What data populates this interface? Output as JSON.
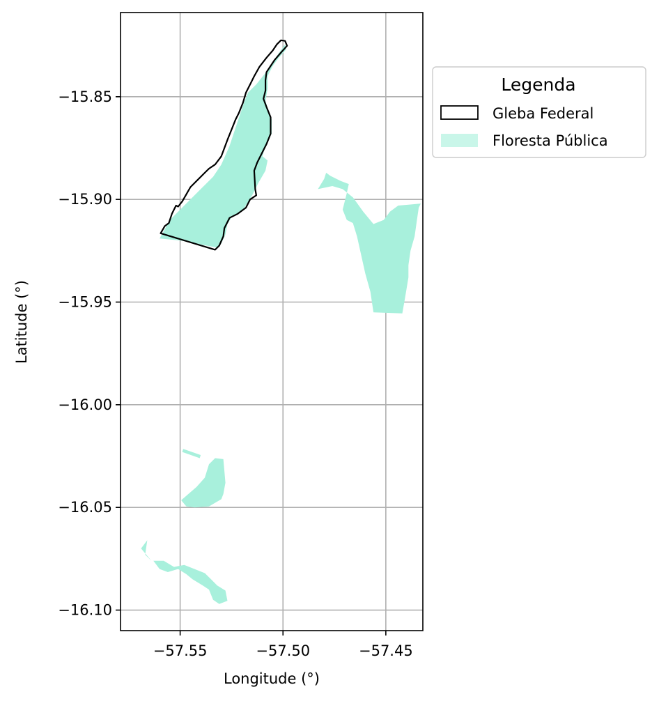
{
  "chart_data": {
    "type": "map",
    "xlabel": "Longitude (°)",
    "ylabel": "Latitude (°)",
    "xlim": [
      -57.579,
      -57.432
    ],
    "ylim": [
      -16.11,
      -15.809
    ],
    "xticks": [
      -57.55,
      -57.5,
      -57.45
    ],
    "yticks": [
      -15.85,
      -15.9,
      -15.95,
      -16.0,
      -16.05,
      -16.1
    ],
    "xtick_labels": [
      "−57.55",
      "−57.50",
      "−57.45"
    ],
    "ytick_labels": [
      "−15.85",
      "−15.90",
      "−15.95",
      "−16.00",
      "−16.05",
      "−16.10"
    ],
    "grid": true,
    "legend": {
      "title": "Legenda",
      "placement": "outside-right-top",
      "entries": [
        {
          "label": "Gleba Federal",
          "style": "outline",
          "edge_color": "#000000"
        },
        {
          "label": "Floresta Pública",
          "style": "fill",
          "fill_color": "#a8f0dc"
        }
      ]
    },
    "layers": {
      "gleba_federal": {
        "name": "Gleba Federal",
        "color": "#000000",
        "outline": [
          [
            -57.5595,
            -15.9165
          ],
          [
            -57.5575,
            -15.913
          ],
          [
            -57.5555,
            -15.9115
          ],
          [
            -57.554,
            -15.907
          ],
          [
            -57.552,
            -15.903
          ],
          [
            -57.551,
            -15.9035
          ],
          [
            -57.549,
            -15.901
          ],
          [
            -57.547,
            -15.8975
          ],
          [
            -57.545,
            -15.894
          ],
          [
            -57.541,
            -15.89
          ],
          [
            -57.538,
            -15.887
          ],
          [
            -57.536,
            -15.885
          ],
          [
            -57.533,
            -15.883
          ],
          [
            -57.53,
            -15.879
          ],
          [
            -57.527,
            -15.871
          ],
          [
            -57.525,
            -15.866
          ],
          [
            -57.523,
            -15.861
          ],
          [
            -57.5215,
            -15.858
          ],
          [
            -57.5195,
            -15.853
          ],
          [
            -57.518,
            -15.848
          ],
          [
            -57.5155,
            -15.843
          ],
          [
            -57.514,
            -15.84
          ],
          [
            -57.5115,
            -15.8355
          ],
          [
            -57.508,
            -15.831
          ],
          [
            -57.505,
            -15.8275
          ],
          [
            -57.503,
            -15.8245
          ],
          [
            -57.501,
            -15.8225
          ],
          [
            -57.499,
            -15.8228
          ],
          [
            -57.498,
            -15.8252
          ],
          [
            -57.501,
            -15.8285
          ],
          [
            -57.504,
            -15.832
          ],
          [
            -57.506,
            -15.835
          ],
          [
            -57.508,
            -15.838
          ],
          [
            -57.5085,
            -15.842
          ],
          [
            -57.5085,
            -15.847
          ],
          [
            -57.5095,
            -15.851
          ],
          [
            -57.508,
            -15.855
          ],
          [
            -57.506,
            -15.86
          ],
          [
            -57.506,
            -15.868
          ],
          [
            -57.508,
            -15.873
          ],
          [
            -57.51,
            -15.877
          ],
          [
            -57.5125,
            -15.882
          ],
          [
            -57.514,
            -15.886
          ],
          [
            -57.5135,
            -15.895
          ],
          [
            -57.513,
            -15.898
          ],
          [
            -57.516,
            -15.9
          ],
          [
            -57.518,
            -15.904
          ],
          [
            -57.522,
            -15.907
          ],
          [
            -57.526,
            -15.909
          ],
          [
            -57.5285,
            -15.914
          ],
          [
            -57.529,
            -15.918
          ],
          [
            -57.531,
            -15.9225
          ],
          [
            -57.533,
            -15.9245
          ],
          [
            -57.5595,
            -15.9165
          ]
        ]
      },
      "floresta_publica": {
        "name": "Floresta Pública",
        "color": "#a8f0dc",
        "polygons": [
          [
            [
              -57.56,
              -15.919
            ],
            [
              -57.555,
              -15.91
            ],
            [
              -57.548,
              -15.903
            ],
            [
              -57.54,
              -15.895
            ],
            [
              -57.534,
              -15.889
            ],
            [
              -57.53,
              -15.883
            ],
            [
              -57.526,
              -15.874
            ],
            [
              -57.523,
              -15.865
            ],
            [
              -57.521,
              -15.859
            ],
            [
              -57.519,
              -15.853
            ],
            [
              -57.517,
              -15.848
            ],
            [
              -57.513,
              -15.844
            ],
            [
              -57.509,
              -15.839
            ],
            [
              -57.505,
              -15.833
            ],
            [
              -57.5015,
              -15.828
            ],
            [
              -57.499,
              -15.8245
            ],
            [
              -57.4985,
              -15.827
            ],
            [
              -57.502,
              -15.831
            ],
            [
              -57.505,
              -15.835
            ],
            [
              -57.5075,
              -15.84
            ],
            [
              -57.5075,
              -15.846
            ],
            [
              -57.5085,
              -15.852
            ],
            [
              -57.507,
              -15.857
            ],
            [
              -57.5055,
              -15.861
            ],
            [
              -57.5055,
              -15.868
            ],
            [
              -57.5085,
              -15.874
            ],
            [
              -57.51,
              -15.879
            ],
            [
              -57.5075,
              -15.881
            ],
            [
              -57.5085,
              -15.886
            ],
            [
              -57.512,
              -15.892
            ],
            [
              -57.515,
              -15.898
            ],
            [
              -57.5175,
              -15.902
            ],
            [
              -57.52,
              -15.906
            ],
            [
              -57.5245,
              -15.908
            ],
            [
              -57.527,
              -15.912
            ],
            [
              -57.528,
              -15.917
            ],
            [
              -57.53,
              -15.9215
            ],
            [
              -57.532,
              -15.9235
            ],
            [
              -57.55,
              -15.92
            ]
          ],
          [
            [
              -57.483,
              -15.895
            ],
            [
              -57.48,
              -15.89
            ],
            [
              -57.479,
              -15.887
            ],
            [
              -57.477,
              -15.8885
            ],
            [
              -57.472,
              -15.891
            ],
            [
              -57.468,
              -15.8925
            ],
            [
              -57.469,
              -15.897
            ],
            [
              -57.471,
              -15.905
            ],
            [
              -57.469,
              -15.91
            ],
            [
              -57.466,
              -15.9115
            ],
            [
              -57.464,
              -15.918
            ],
            [
              -57.462,
              -15.927
            ],
            [
              -57.46,
              -15.936
            ],
            [
              -57.4575,
              -15.945
            ],
            [
              -57.456,
              -15.955
            ],
            [
              -57.442,
              -15.9555
            ],
            [
              -57.441,
              -15.95
            ],
            [
              -57.44,
              -15.944
            ],
            [
              -57.439,
              -15.938
            ],
            [
              -57.439,
              -15.932
            ],
            [
              -57.438,
              -15.925
            ],
            [
              -57.436,
              -15.918
            ],
            [
              -57.435,
              -15.911
            ],
            [
              -57.434,
              -15.904
            ],
            [
              -57.433,
              -15.902
            ],
            [
              -57.438,
              -15.9025
            ],
            [
              -57.444,
              -15.903
            ],
            [
              -57.448,
              -15.906
            ],
            [
              -57.451,
              -15.91
            ],
            [
              -57.456,
              -15.912
            ],
            [
              -57.461,
              -15.906
            ],
            [
              -57.466,
              -15.899
            ],
            [
              -57.471,
              -15.895
            ],
            [
              -57.476,
              -15.8935
            ]
          ],
          [
            [
              -57.549,
              -16.023
            ],
            [
              -57.5405,
              -16.026
            ],
            [
              -57.54,
              -16.0245
            ],
            [
              -57.5485,
              -16.0215
            ]
          ],
          [
            [
              -57.5495,
              -16.0465
            ],
            [
              -57.542,
              -16.04
            ],
            [
              -57.538,
              -16.0355
            ],
            [
              -57.536,
              -16.029
            ],
            [
              -57.533,
              -16.026
            ],
            [
              -57.529,
              -16.0265
            ],
            [
              -57.528,
              -16.038
            ],
            [
              -57.529,
              -16.0435
            ],
            [
              -57.53,
              -16.046
            ],
            [
              -57.536,
              -16.0495
            ],
            [
              -57.543,
              -16.05
            ],
            [
              -57.547,
              -16.0495
            ]
          ],
          [
            [
              -57.563,
              -16.076
            ],
            [
              -57.56,
              -16.08
            ],
            [
              -57.556,
              -16.0815
            ],
            [
              -57.551,
              -16.08
            ],
            [
              -57.547,
              -16.0825
            ],
            [
              -57.544,
              -16.085
            ],
            [
              -57.539,
              -16.088
            ],
            [
              -57.536,
              -16.09
            ],
            [
              -57.534,
              -16.095
            ],
            [
              -57.531,
              -16.097
            ],
            [
              -57.527,
              -16.0955
            ],
            [
              -57.528,
              -16.0905
            ],
            [
              -57.532,
              -16.088
            ],
            [
              -57.535,
              -16.085
            ],
            [
              -57.538,
              -16.082
            ],
            [
              -57.543,
              -16.08
            ],
            [
              -57.548,
              -16.078
            ],
            [
              -57.553,
              -16.079
            ],
            [
              -57.558,
              -16.076
            ]
          ],
          [
            [
              -57.569,
              -16.07
            ],
            [
              -57.566,
              -16.066
            ],
            [
              -57.567,
              -16.073
            ],
            [
              -57.564,
              -16.076
            ]
          ]
        ]
      }
    }
  }
}
